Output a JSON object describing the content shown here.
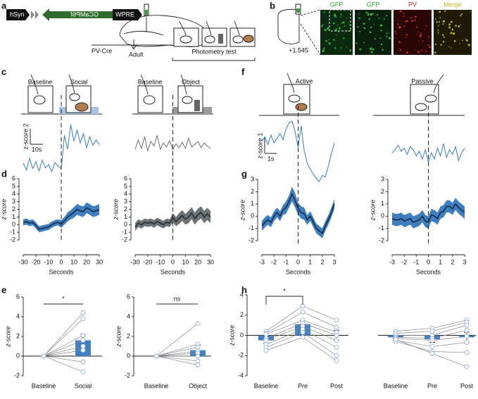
{
  "figure": {
    "panel_labels": [
      "a",
      "b",
      "c",
      "d",
      "e",
      "f",
      "g",
      "h"
    ],
    "construct": [
      "hSyn",
      "GCaMP6f",
      "WPRE"
    ],
    "timeline": [
      "PV-Cre",
      "Adult",
      "Photometry test"
    ],
    "histology": {
      "coordinate": "+1.545",
      "channels": [
        "GFP",
        "GFP",
        "PV",
        "Merge"
      ]
    },
    "conditions": [
      "Baseline",
      "Social",
      "Baseline",
      "Object",
      "Active",
      "Passive"
    ]
  },
  "chart_data": [
    {
      "type": "line",
      "x": [
        -30,
        -27.5,
        -25,
        -22.5,
        -20,
        -17.5,
        -15,
        -12.5,
        -10,
        -7.5,
        -5,
        -2.5,
        0,
        2.5,
        5,
        7.5,
        10,
        12.5,
        15,
        17.5,
        20,
        22.5,
        25,
        27.5,
        30
      ],
      "series": [
        {
          "color": "#4a86c5",
          "values": [
            1.2,
            0.3,
            1.8,
            0.5,
            1.4,
            0.2,
            1.6,
            0.6,
            1.0,
            0.1,
            1.3,
            0.8,
            0.5,
            4.8,
            3.0,
            6.2,
            4.0,
            5.5,
            3.8,
            5.0,
            3.2,
            4.6,
            3.5,
            4.2,
            3.6
          ]
        }
      ],
      "scalebar": {
        "y": 2,
        "y_label": "z-score 2",
        "x": 10,
        "x_label": "10s"
      }
    },
    {
      "type": "line",
      "x": [
        -30,
        -27.5,
        -25,
        -22.5,
        -20,
        -17.5,
        -15,
        -12.5,
        -10,
        -7.5,
        -5,
        -2.5,
        0,
        2.5,
        5,
        7.5,
        10,
        12.5,
        15,
        17.5,
        20,
        22.5,
        25,
        27.5,
        30
      ],
      "series": [
        {
          "color": "#7a7a7a",
          "values": [
            3.0,
            4.2,
            3.1,
            4.6,
            2.8,
            4.0,
            3.4,
            4.8,
            3.0,
            3.8,
            3.3,
            4.1,
            2.9,
            3.7,
            3.2,
            3.9,
            3.1,
            4.4,
            3.3,
            3.6,
            4.0,
            3.2,
            3.8,
            3.4,
            3.1
          ]
        }
      ]
    },
    {
      "type": "line",
      "xlabel": "Seconds",
      "ylabel": "z-score",
      "xlim": [
        -30,
        30
      ],
      "xticks": [
        -30,
        -20,
        -10,
        0,
        10,
        20,
        30
      ],
      "ylim": [
        -2,
        6
      ],
      "yticks": [
        -2,
        -1,
        0,
        1,
        2,
        3,
        4,
        5,
        6
      ],
      "marker_x": 0,
      "x": [
        -30,
        -27.5,
        -25,
        -22.5,
        -20,
        -17.5,
        -15,
        -12.5,
        -10,
        -7.5,
        -5,
        -2.5,
        0,
        2.5,
        5,
        7.5,
        10,
        12.5,
        15,
        17.5,
        20,
        22.5,
        25,
        27.5,
        30
      ],
      "series": [
        {
          "color": "#1b2a41",
          "band_color": "#3e7fc1",
          "values": [
            0.3,
            0.4,
            0.2,
            0.3,
            -0.1,
            -0.6,
            -0.5,
            -0.4,
            -0.3,
            0,
            0.2,
            0.3,
            0.1,
            0.5,
            1.0,
            1.3,
            1.6,
            2.0,
            1.8,
            1.7,
            2.2,
            2.0,
            1.7,
            1.8,
            2.0
          ],
          "errors": [
            0.4,
            0.4,
            0.4,
            0.4,
            0.4,
            0.4,
            0.4,
            0.4,
            0.4,
            0.4,
            0.4,
            0.4,
            0.5,
            0.5,
            0.6,
            0.6,
            0.7,
            0.7,
            0.7,
            0.7,
            0.7,
            0.7,
            0.7,
            0.7,
            0.7
          ]
        }
      ]
    },
    {
      "type": "line",
      "xlabel": "Seconds",
      "ylabel": "z-score",
      "xlim": [
        -30,
        30
      ],
      "xticks": [
        -30,
        -20,
        -10,
        0,
        10,
        20,
        30
      ],
      "ylim": [
        -2,
        6
      ],
      "yticks": [
        -2,
        -1,
        0,
        1,
        2,
        3,
        4,
        5,
        6
      ],
      "marker_x": 0,
      "x": [
        -30,
        -27.5,
        -25,
        -22.5,
        -20,
        -17.5,
        -15,
        -12.5,
        -10,
        -7.5,
        -5,
        -2.5,
        0,
        2.5,
        5,
        7.5,
        10,
        12.5,
        15,
        17.5,
        20,
        22.5,
        25,
        27.5,
        30
      ],
      "series": [
        {
          "color": "#2b2b2b",
          "band_color": "#6b7278",
          "values": [
            -0.3,
            0.2,
            0,
            0.3,
            0.2,
            0.3,
            0.1,
            0.4,
            0.2,
            0,
            0.3,
            0.2,
            0.9,
            0.4,
            0.8,
            1.2,
            0.7,
            1.0,
            1.5,
            0.8,
            1.3,
            1.6,
            1.0,
            1.4,
            1.0
          ],
          "errors": [
            0.5,
            0.5,
            0.5,
            0.5,
            0.5,
            0.5,
            0.5,
            0.5,
            0.5,
            0.5,
            0.5,
            0.5,
            0.6,
            0.6,
            0.7,
            0.7,
            0.7,
            0.8,
            0.8,
            0.8,
            0.8,
            0.8,
            0.8,
            0.8,
            0.8
          ]
        }
      ]
    },
    {
      "type": "line",
      "x": [
        -3,
        -2.75,
        -2.5,
        -2.25,
        -2,
        -1.75,
        -1.5,
        -1.25,
        -1,
        -0.75,
        -0.5,
        -0.25,
        0,
        0.25,
        0.5,
        0.75,
        1,
        1.25,
        1.5,
        1.75,
        2,
        2.25,
        2.5,
        2.75,
        3
      ],
      "series": [
        {
          "color": "#4a86c5",
          "values": [
            2.6,
            2.9,
            2.4,
            3.0,
            2.5,
            2.8,
            3.1,
            2.7,
            3.4,
            3.8,
            3.9,
            3.2,
            2.2,
            3.6,
            2.0,
            1.2,
            0.8,
            0.5,
            0.2,
            0,
            0.4,
            0.3,
            1.0,
            1.8,
            2.5
          ]
        }
      ],
      "scalebar": {
        "y": 1,
        "y_label": "z-score 1",
        "x": 1,
        "x_label": "1s"
      }
    },
    {
      "type": "line",
      "x": [
        -3,
        -2.75,
        -2.5,
        -2.25,
        -2,
        -1.75,
        -1.5,
        -1.25,
        -1,
        -0.75,
        -0.5,
        -0.25,
        0,
        0.25,
        0.5,
        0.75,
        1,
        1.25,
        1.5,
        1.75,
        2,
        2.25,
        2.5,
        2.75,
        3
      ],
      "series": [
        {
          "color": "#4a86c5",
          "values": [
            2.4,
            2.6,
            2.9,
            2.5,
            2.7,
            2.3,
            2.8,
            2.6,
            2.2,
            2.5,
            2.0,
            2.6,
            1.8,
            2.4,
            2.0,
            2.7,
            2.2,
            3.0,
            2.1,
            2.6,
            2.3,
            2.8,
            1.9,
            2.4,
            2.7
          ]
        }
      ]
    },
    {
      "type": "line",
      "xlabel": "Seconds",
      "ylabel": "z-score",
      "xlim": [
        -3,
        3
      ],
      "xticks": [
        -3,
        -2,
        -1,
        0,
        1,
        2,
        3
      ],
      "ylim": [
        -2,
        3
      ],
      "yticks": [
        -2,
        -1,
        0,
        1,
        2,
        3
      ],
      "marker_x": 0,
      "x": [
        -3,
        -2.75,
        -2.5,
        -2.25,
        -2,
        -1.75,
        -1.5,
        -1.25,
        -1,
        -0.75,
        -0.5,
        -0.25,
        0,
        0.25,
        0.5,
        0.75,
        1,
        1.25,
        1.5,
        1.75,
        2,
        2.25,
        2.5,
        2.75,
        3
      ],
      "series": [
        {
          "color": "#1b2a41",
          "band_color": "#3e7fc1",
          "values": [
            -0.8,
            -0.5,
            -0.3,
            -0.5,
            0,
            0.3,
            0,
            0.5,
            0.7,
            1.2,
            1.8,
            1.3,
            0.6,
            0.3,
            0.2,
            -0.3,
            0,
            -0.5,
            -1.0,
            -1.2,
            -1.4,
            -0.8,
            -0.3,
            0.3,
            1.0
          ],
          "errors": [
            0.4,
            0.4,
            0.4,
            0.4,
            0.4,
            0.4,
            0.4,
            0.4,
            0.5,
            0.5,
            0.6,
            0.6,
            0.5,
            0.5,
            0.5,
            0.4,
            0.4,
            0.4,
            0.4,
            0.4,
            0.4,
            0.4,
            0.4,
            0.4,
            0.4
          ]
        }
      ]
    },
    {
      "type": "line",
      "xlabel": "Seconds",
      "ylabel": "z-score",
      "xlim": [
        -3,
        3
      ],
      "xticks": [
        -3,
        -2,
        -1,
        0,
        1,
        2,
        3
      ],
      "ylim": [
        -2,
        3
      ],
      "yticks": [
        -2,
        -1,
        0,
        1,
        2,
        3
      ],
      "marker_x": 0,
      "x": [
        -3,
        -2.75,
        -2.5,
        -2.25,
        -2,
        -1.75,
        -1.5,
        -1.25,
        -1,
        -0.75,
        -0.5,
        -0.25,
        0,
        0.25,
        0.5,
        0.75,
        1,
        1.25,
        1.5,
        1.75,
        2,
        2.25,
        2.5,
        2.75,
        3
      ],
      "series": [
        {
          "color": "#1b2a41",
          "band_color": "#3e7fc1",
          "values": [
            -0.2,
            -0.3,
            -0.3,
            -0.2,
            -0.4,
            -0.3,
            -0.2,
            -0.5,
            -0.4,
            -0.3,
            0,
            -0.4,
            -0.5,
            0.1,
            0,
            -0.2,
            0.3,
            0.4,
            0.8,
            0.8,
            0.6,
            1.0,
            0.7,
            0.5,
            0.3
          ],
          "errors": [
            0.5,
            0.5,
            0.5,
            0.5,
            0.5,
            0.5,
            0.5,
            0.5,
            0.5,
            0.5,
            0.5,
            0.5,
            0.5,
            0.5,
            0.5,
            0.5,
            0.5,
            0.5,
            0.5,
            0.5,
            0.5,
            0.5,
            0.5,
            0.5,
            0.5
          ]
        }
      ]
    },
    {
      "type": "bar",
      "ylabel": "z-score",
      "ylim": [
        -2,
        6
      ],
      "yticks": [
        -2,
        0,
        2,
        4,
        6
      ],
      "color": "#3f7fc2",
      "categories": [
        "Baseline",
        "Social"
      ],
      "values": [
        0,
        1.6
      ],
      "errors": [
        0,
        0.6
      ],
      "individual": [
        [
          0,
          0,
          0,
          0,
          0,
          0,
          0,
          0
        ],
        [
          4.4,
          3.8,
          2.1,
          1.6,
          1.0,
          0.6,
          -0.6,
          -1.6
        ]
      ],
      "annotation": "*"
    },
    {
      "type": "bar",
      "ylabel": "z-score",
      "ylim": [
        -2,
        6
      ],
      "yticks": [
        -2,
        0,
        2,
        4,
        6
      ],
      "color": "#3f7fc2",
      "categories": [
        "Baseline",
        "Object"
      ],
      "values": [
        0,
        0.6
      ],
      "errors": [
        0,
        0.5
      ],
      "individual": [
        [
          0,
          0,
          0,
          0,
          0,
          0,
          0,
          0
        ],
        [
          3.3,
          1.2,
          0.9,
          0.5,
          0.3,
          0,
          -0.5,
          -0.9
        ]
      ],
      "annotation": "ns"
    },
    {
      "type": "bar",
      "ylabel": "z-score",
      "ylim": [
        -4,
        4
      ],
      "yticks": [
        -4,
        -2,
        0,
        2,
        4
      ],
      "color": "#3f7fc2",
      "categories": [
        "Baseline",
        "Pre",
        "Post"
      ],
      "values": [
        -0.5,
        1.1,
        0
      ],
      "errors": [
        0.3,
        0.35,
        0.5
      ],
      "individual": [
        [
          0.4,
          0.2,
          0.1,
          -0.3,
          -0.5,
          -0.9,
          -1.2,
          -1.5
        ],
        [
          2.9,
          2.3,
          1.5,
          1.2,
          0.9,
          0.6,
          0.3,
          -0.2
        ],
        [
          1.5,
          0.8,
          0.3,
          0,
          -0.5,
          -1.2,
          -2.0,
          -2.5
        ]
      ],
      "annotation": "*"
    },
    {
      "type": "bar",
      "ylim": [
        -4,
        4
      ],
      "color": "#3f7fc2",
      "categories": [
        "Baseline",
        "Pre",
        "Post"
      ],
      "values": [
        -0.2,
        -0.4,
        -0.2
      ],
      "errors": [
        0.15,
        0.3,
        0.5
      ],
      "individual": [
        [
          0.4,
          0.2,
          0,
          -0.2,
          -0.3,
          -0.5,
          -0.6,
          -0.4
        ],
        [
          0.7,
          0.4,
          0,
          -0.3,
          -0.5,
          -1.1,
          -1.6,
          -1.8
        ],
        [
          1.5,
          1.3,
          1.0,
          0.5,
          -0.1,
          -0.7,
          -1.7,
          -3.1
        ]
      ]
    }
  ]
}
